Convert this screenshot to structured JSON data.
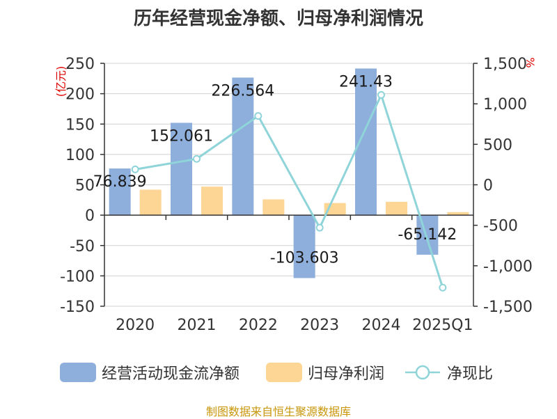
{
  "chart_data": {
    "type": "bar",
    "title": "历年经营现金净额、归母净利润情况",
    "categories": [
      "2020",
      "2021",
      "2022",
      "2023",
      "2024",
      "2025Q1"
    ],
    "series": [
      {
        "name": "经营活动现金流净额",
        "kind": "bar",
        "axis": "left",
        "color": "#8eaedc",
        "values": [
          76.839,
          152.061,
          226.564,
          -103.603,
          241.43,
          -65.142
        ],
        "labels": [
          "76.839",
          "152.061",
          "226.564",
          "-103.603",
          "241.43",
          "-65.142"
        ]
      },
      {
        "name": "归母净利润",
        "kind": "bar",
        "axis": "left",
        "color": "#fdd594",
        "values": [
          42,
          47,
          26,
          20,
          22,
          5
        ]
      },
      {
        "name": "净现比",
        "kind": "line",
        "axis": "right",
        "color": "#8fd4d8",
        "values": [
          190,
          320,
          850,
          -530,
          1110,
          -1270
        ]
      }
    ],
    "ylabel_left": "(亿元)",
    "ylabel_right": "%",
    "ylim_left": [
      -150,
      250
    ],
    "yticks_left": [
      250,
      200,
      150,
      100,
      50,
      0,
      -50,
      -100,
      -150
    ],
    "yticks_left_labels": [
      "250",
      "200",
      "150",
      "100",
      "50",
      "0",
      "-50",
      "-100",
      "-150"
    ],
    "ylim_right": [
      -1500,
      1500
    ],
    "yticks_right": [
      1500,
      1000,
      500,
      0,
      -500,
      -1000,
      -1500
    ],
    "yticks_right_labels": [
      "1,500",
      "1,000",
      "500",
      "0",
      "-500",
      "-1,000",
      "-1,500"
    ],
    "grid": true,
    "legend_position": "bottom"
  },
  "legend": {
    "items": [
      "经营活动现金流净额",
      "归母净利润",
      "净现比"
    ]
  },
  "footer": {
    "source": "制图数据来自恒生聚源数据库"
  }
}
